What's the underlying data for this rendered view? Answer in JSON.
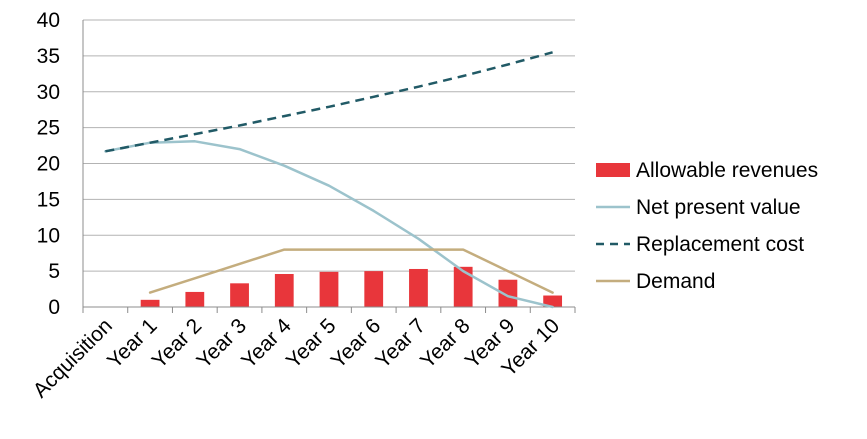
{
  "chart_data": {
    "type": "bar",
    "categories": [
      "Acquisition",
      "Year 1",
      "Year 2",
      "Year 3",
      "Year 4",
      "Year 5",
      "Year 6",
      "Year 7",
      "Year 8",
      "Year 9",
      "Year 10"
    ],
    "ylim": [
      0,
      40
    ],
    "yticks": [
      0,
      5,
      10,
      15,
      20,
      25,
      30,
      35,
      40
    ],
    "grid": true,
    "legend_position": "right",
    "series": [
      {
        "name": "Allowable revenues",
        "kind": "bar",
        "color": "#e8363b",
        "values": [
          null,
          1.0,
          2.1,
          3.3,
          4.6,
          4.9,
          5.0,
          5.3,
          5.6,
          3.8,
          1.6
        ]
      },
      {
        "name": "Net present value",
        "kind": "line",
        "style": "solid",
        "color": "#9cc3cc",
        "values": [
          21.7,
          22.9,
          23.1,
          22.0,
          19.7,
          16.9,
          13.4,
          9.5,
          5.0,
          1.5,
          0.0
        ]
      },
      {
        "name": "Replacement cost",
        "kind": "line",
        "style": "dashed",
        "color": "#215a66",
        "values": [
          21.7,
          22.9,
          24.1,
          25.3,
          26.6,
          27.9,
          29.3,
          30.7,
          32.2,
          33.8,
          35.5
        ]
      },
      {
        "name": "Demand",
        "kind": "line",
        "style": "solid",
        "color": "#c4ad7e",
        "values": [
          null,
          2.0,
          4.0,
          6.0,
          8.0,
          8.0,
          8.0,
          8.0,
          8.0,
          5.0,
          2.0
        ]
      }
    ]
  }
}
